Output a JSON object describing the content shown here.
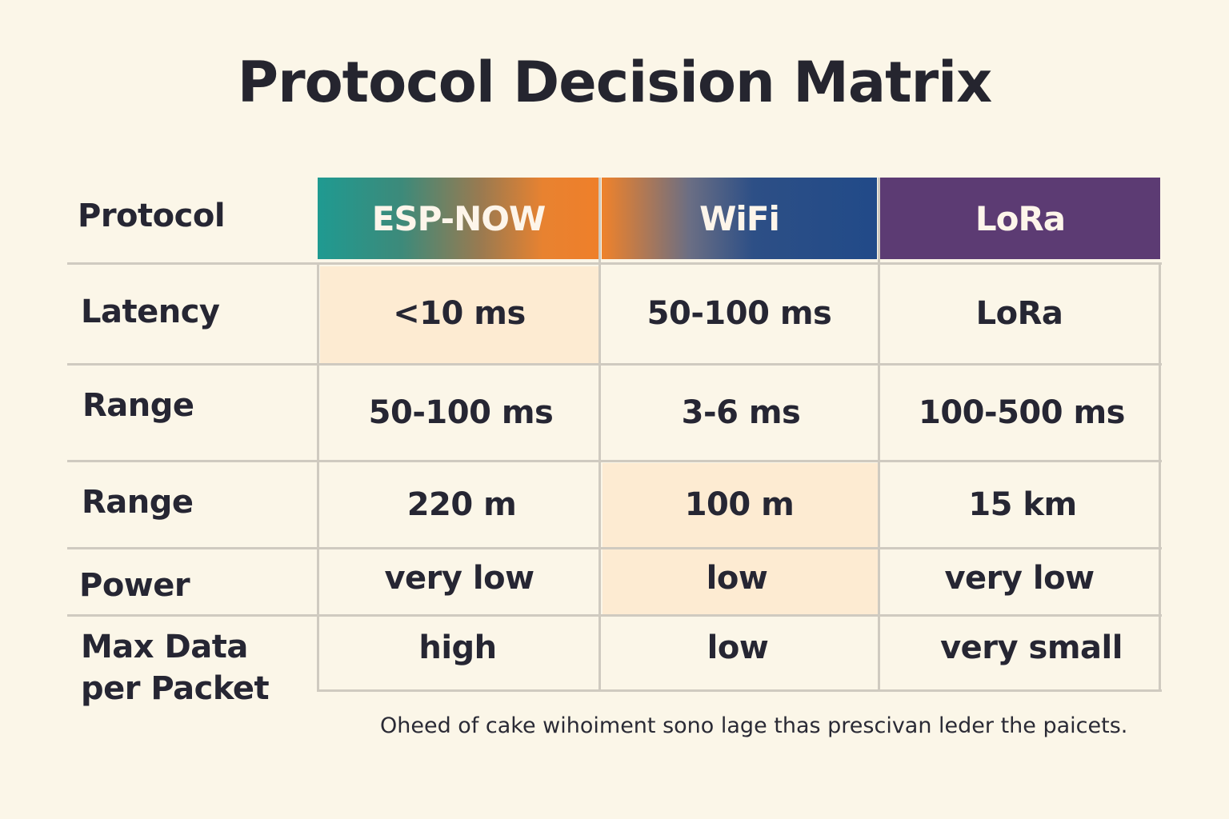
{
  "title": "Protocol Decision Matrix",
  "table": {
    "corner_label": "Protocol",
    "columns": [
      "ESP-NOW",
      "WiFi",
      "LoRa"
    ],
    "rows": [
      {
        "label": "Latency",
        "values": [
          "<10 ms",
          "50-100 ms",
          "LoRa"
        ]
      },
      {
        "label": "Range",
        "values": [
          "50-100 ms",
          "3-6 ms",
          "100-500 ms"
        ]
      },
      {
        "label": "Range",
        "values": [
          "220 m",
          "100 m",
          "15 km"
        ]
      },
      {
        "label": "Power",
        "values": [
          "very low",
          "low",
          "very low"
        ]
      },
      {
        "label": "Max Data per Packet",
        "values": [
          "high",
          "low",
          "very small"
        ]
      }
    ]
  },
  "footnote": "Oheed of cake wihoiment sono lage thas prescivan leder the paicets.",
  "colors": {
    "background": "#fbf6e8",
    "esp_now_header": "#1f9a91",
    "esp_now_header_end": "#ef7f2a",
    "wifi_header": "#214a88",
    "lora_header": "#5c3b73",
    "highlight": "#fdebd2",
    "grid": "#cfcac0"
  }
}
